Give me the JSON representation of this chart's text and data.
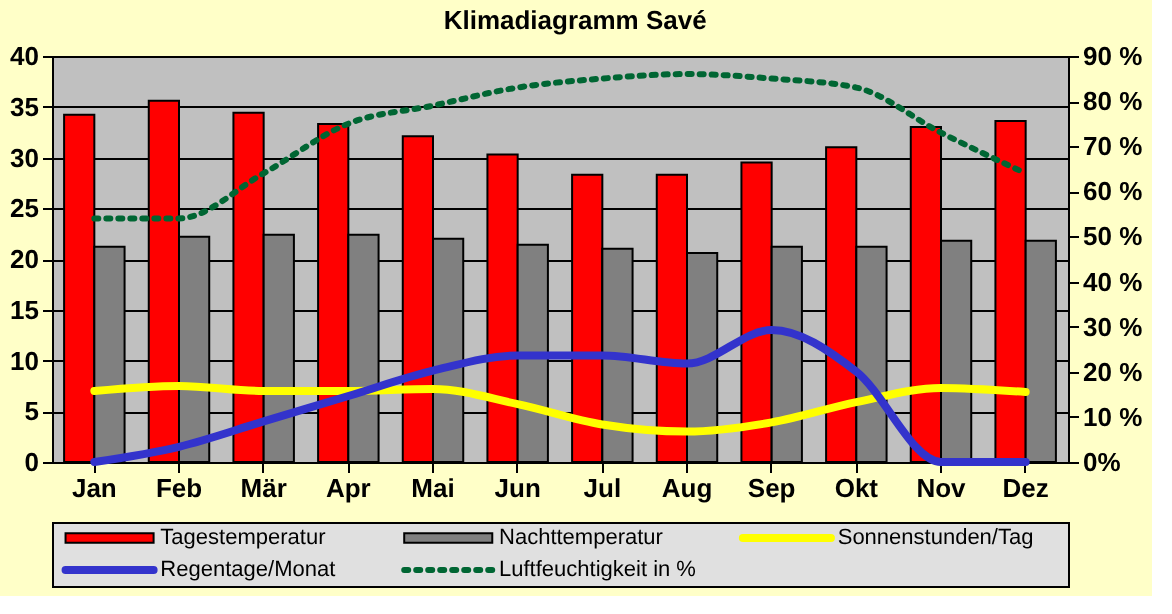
{
  "chart_data": {
    "type": "bar",
    "title": "Klimadiagramm Savé",
    "categories": [
      "Jan",
      "Feb",
      "Mär",
      "Apr",
      "Mai",
      "Jun",
      "Jul",
      "Aug",
      "Sep",
      "Okt",
      "Nov",
      "Dez"
    ],
    "series": [
      {
        "name": "Tagestemperatur",
        "color": "#ff0000",
        "values": [
          34.2,
          35.6,
          34.4,
          33.3,
          32.1,
          30.3,
          28.3,
          28.3,
          29.5,
          31.0,
          33.0,
          33.6
        ]
      },
      {
        "name": "Nachttemperatur",
        "color": "#808080",
        "values": [
          21.2,
          22.2,
          22.4,
          22.4,
          22.0,
          21.4,
          21.0,
          20.6,
          21.2,
          21.2,
          21.8,
          21.8
        ]
      },
      {
        "name": "Sonnenstunden/Tag",
        "type": "line",
        "color": "#ffff00",
        "line_style": "solid",
        "values": [
          7.0,
          7.5,
          7.0,
          7.0,
          7.2,
          5.7,
          3.7,
          3.0,
          3.9,
          5.9,
          7.3,
          6.9
        ]
      },
      {
        "name": "Regentage/Monat",
        "type": "line",
        "color": "#3333cc",
        "line_style": "solid",
        "values": [
          0,
          1.5,
          4,
          6.5,
          9,
          10.5,
          10.5,
          9.7,
          13.0,
          8.9,
          0,
          0
        ]
      },
      {
        "name": "Luftfeuchtigkeit in %",
        "type": "line",
        "color": "#006633",
        "line_style": "dotted",
        "axis": "y2",
        "values": [
          54,
          54,
          64,
          75,
          79,
          83,
          85,
          86,
          85,
          83,
          73,
          64
        ]
      }
    ],
    "ylim": [
      0,
      40
    ],
    "yticks": [
      0,
      5,
      10,
      15,
      20,
      25,
      30,
      35,
      40
    ],
    "y2lim": [
      0,
      90
    ],
    "y2ticks": [
      {
        "value": 0,
        "label": "0%"
      },
      {
        "value": 10,
        "label": "10 %"
      },
      {
        "value": 20,
        "label": "20 %"
      },
      {
        "value": 30,
        "label": "30 %"
      },
      {
        "value": 40,
        "label": "40 %"
      },
      {
        "value": 50,
        "label": "50 %"
      },
      {
        "value": 60,
        "label": "60 %"
      },
      {
        "value": 70,
        "label": "70 %"
      },
      {
        "value": 80,
        "label": "80 %"
      },
      {
        "value": 90,
        "label": "90 %"
      }
    ],
    "grid": "y",
    "legend": "bottom"
  }
}
